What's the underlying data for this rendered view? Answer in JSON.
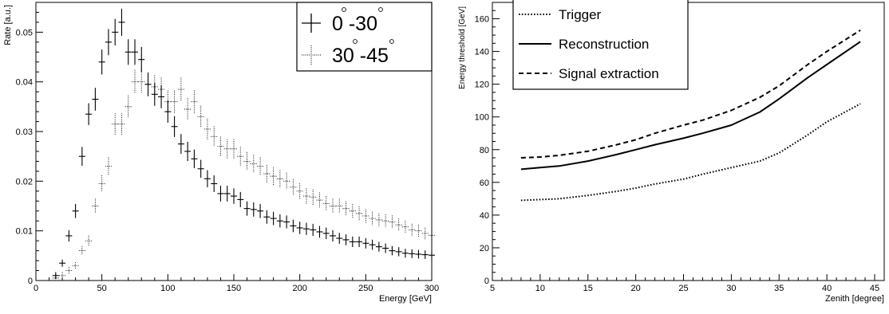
{
  "chart_data": [
    {
      "type": "scatter",
      "xlabel": "Energy [GeV]",
      "ylabel": "Rate [a.u.]",
      "xlim": [
        0,
        300
      ],
      "ylim": [
        0,
        0.056
      ],
      "xticks": [
        0,
        50,
        100,
        150,
        200,
        250,
        300
      ],
      "yticks": [
        0,
        0.01,
        0.02,
        0.03,
        0.04,
        0.05
      ],
      "ytick_labels": [
        "0",
        "0.01",
        "0.02",
        "0.03",
        "0.04",
        "0.05"
      ],
      "legend_position": "top-right",
      "legend": {
        "entries": [
          {
            "label": "0 -30",
            "degree_marks": true
          },
          {
            "label": "30 -45",
            "degree_marks": true
          }
        ]
      },
      "series": [
        {
          "name": "0 -30",
          "style": "solid",
          "x": [
            15,
            20,
            25,
            30,
            35,
            40,
            45,
            50,
            55,
            60,
            65,
            70,
            75,
            80,
            85,
            90,
            95,
            100,
            105,
            110,
            115,
            120,
            125,
            130,
            135,
            140,
            145,
            150,
            155,
            160,
            165,
            170,
            175,
            180,
            185,
            190,
            195,
            200,
            205,
            210,
            215,
            220,
            225,
            230,
            235,
            240,
            245,
            250,
            255,
            260,
            265,
            270,
            275,
            280,
            285,
            290,
            295,
            300
          ],
          "values": [
            0.001,
            0.0035,
            0.009,
            0.014,
            0.025,
            0.0335,
            0.0365,
            0.044,
            0.048,
            0.05,
            0.052,
            0.046,
            0.046,
            0.0445,
            0.0395,
            0.0375,
            0.037,
            0.034,
            0.031,
            0.0275,
            0.026,
            0.0245,
            0.0225,
            0.0205,
            0.0195,
            0.0175,
            0.0175,
            0.017,
            0.0163,
            0.0145,
            0.0143,
            0.014,
            0.0128,
            0.0125,
            0.012,
            0.0118,
            0.011,
            0.0106,
            0.0104,
            0.0102,
            0.0098,
            0.0095,
            0.009,
            0.0085,
            0.0082,
            0.0078,
            0.0078,
            0.0075,
            0.0072,
            0.0068,
            0.0065,
            0.006,
            0.0058,
            0.0055,
            0.0054,
            0.0053,
            0.0052,
            0.0051
          ]
        },
        {
          "name": "30 -45",
          "style": "dotted",
          "x": [
            15,
            20,
            25,
            30,
            35,
            40,
            45,
            50,
            55,
            60,
            65,
            70,
            75,
            80,
            85,
            90,
            95,
            100,
            105,
            110,
            115,
            120,
            125,
            130,
            135,
            140,
            145,
            150,
            155,
            160,
            165,
            170,
            175,
            180,
            185,
            190,
            195,
            200,
            205,
            210,
            215,
            220,
            225,
            230,
            235,
            240,
            245,
            250,
            255,
            260,
            265,
            270,
            275,
            280,
            285,
            290,
            295,
            300
          ],
          "values": [
            0.0005,
            0.001,
            0.002,
            0.003,
            0.006,
            0.008,
            0.015,
            0.0195,
            0.023,
            0.0315,
            0.0315,
            0.035,
            0.04,
            0.04,
            0.0395,
            0.039,
            0.0385,
            0.036,
            0.036,
            0.0385,
            0.0345,
            0.036,
            0.033,
            0.0305,
            0.029,
            0.027,
            0.0265,
            0.0265,
            0.025,
            0.024,
            0.0235,
            0.023,
            0.0215,
            0.021,
            0.0205,
            0.02,
            0.0188,
            0.018,
            0.017,
            0.0168,
            0.0162,
            0.0155,
            0.015,
            0.015,
            0.0145,
            0.014,
            0.0135,
            0.013,
            0.0125,
            0.0122,
            0.012,
            0.0118,
            0.0112,
            0.0108,
            0.0102,
            0.01,
            0.0095,
            0.0091
          ]
        }
      ]
    },
    {
      "type": "line",
      "xlabel": "Zenith [degree]",
      "ylabel": "Energy threshold [GeV]",
      "xlim": [
        5,
        46
      ],
      "ylim": [
        0,
        170
      ],
      "xticks": [
        5,
        10,
        15,
        20,
        25,
        30,
        35,
        40,
        45
      ],
      "yticks": [
        0,
        20,
        40,
        60,
        80,
        100,
        120,
        140,
        160
      ],
      "legend_position": "top-left",
      "series": [
        {
          "name": "Trigger",
          "style": "dotted",
          "x": [
            8,
            10,
            12,
            15,
            18,
            20,
            22,
            25,
            27,
            30,
            33,
            35,
            38,
            40,
            43.5
          ],
          "values": [
            49,
            49.5,
            50,
            52,
            54.5,
            56.5,
            59,
            62,
            65,
            69,
            73,
            78,
            89,
            97,
            108
          ]
        },
        {
          "name": "Reconstruction",
          "style": "solid",
          "x": [
            8,
            10,
            12,
            15,
            18,
            20,
            22,
            25,
            27,
            30,
            33,
            35,
            38,
            40,
            43.5
          ],
          "values": [
            68,
            69,
            70,
            73,
            77,
            80,
            83,
            87,
            90,
            95,
            103,
            111,
            124,
            132,
            146
          ]
        },
        {
          "name": "Signal extraction",
          "style": "dashed",
          "x": [
            8,
            10,
            12,
            15,
            18,
            20,
            22,
            25,
            27,
            30,
            33,
            35,
            38,
            40,
            43.5
          ],
          "values": [
            75,
            75.5,
            76.5,
            79,
            83,
            86,
            90,
            95,
            98,
            104,
            112,
            119,
            132,
            140,
            153
          ]
        }
      ]
    }
  ]
}
